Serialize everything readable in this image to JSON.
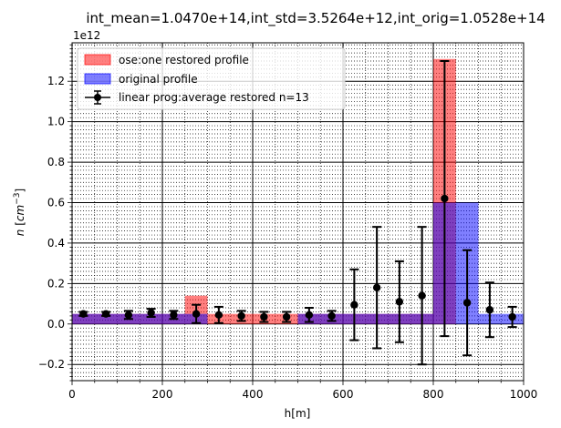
{
  "chart_data": {
    "type": "bar",
    "title": "int_mean=1.0470e+14,int_std=3.5264e+12,int_orig=1.0528e+14",
    "xlabel": "h[m]",
    "ylabel": "n [cm^-3]",
    "y_multiplier": "1e12",
    "xlim": [
      0,
      1000
    ],
    "ylim": [
      -0.28,
      1.39
    ],
    "x_ticks": [
      0,
      200,
      400,
      600,
      800,
      1000
    ],
    "y_ticks": [
      -0.2,
      0.0,
      0.2,
      0.4,
      0.6,
      0.8,
      1.0,
      1.2
    ],
    "grid": true,
    "legend_placement": "top-left",
    "bin_width": 50,
    "bin_centers": [
      25,
      75,
      125,
      175,
      225,
      275,
      325,
      375,
      425,
      475,
      525,
      575,
      625,
      675,
      725,
      775,
      825,
      875,
      925,
      975
    ],
    "series": [
      {
        "name": "ose:one restored profile",
        "kind": "bar",
        "color": "#ff0000",
        "values": [
          0.05,
          0.05,
          0.05,
          0.05,
          0.05,
          0.14,
          0.05,
          0.05,
          0.05,
          0.05,
          0.05,
          0.05,
          0.05,
          0.05,
          0.05,
          0.05,
          1.31,
          0.0,
          0.0,
          0.0
        ]
      },
      {
        "name": "original profile",
        "kind": "bar",
        "color": "#0000ff",
        "values": [
          0.05,
          0.05,
          0.05,
          0.05,
          0.05,
          0.05,
          0.0,
          0.0,
          0.0,
          0.0,
          0.05,
          0.05,
          0.05,
          0.05,
          0.05,
          0.05,
          0.6,
          0.6,
          0.05,
          0.05
        ]
      },
      {
        "name": "linear prog:average restored n=13",
        "kind": "errorbar",
        "color": "#000000",
        "x": [
          25,
          75,
          125,
          175,
          225,
          275,
          325,
          375,
          425,
          475,
          525,
          575,
          625,
          675,
          725,
          775,
          825,
          875,
          925,
          975
        ],
        "values": [
          0.05,
          0.05,
          0.045,
          0.055,
          0.045,
          0.05,
          0.045,
          0.04,
          0.035,
          0.035,
          0.045,
          0.04,
          0.095,
          0.18,
          0.11,
          0.14,
          0.62,
          0.105,
          0.07,
          0.035
        ],
        "err": [
          0.01,
          0.01,
          0.02,
          0.02,
          0.02,
          0.045,
          0.04,
          0.025,
          0.025,
          0.025,
          0.035,
          0.025,
          0.175,
          0.3,
          0.2,
          0.34,
          0.68,
          0.26,
          0.135,
          0.05
        ]
      }
    ]
  }
}
